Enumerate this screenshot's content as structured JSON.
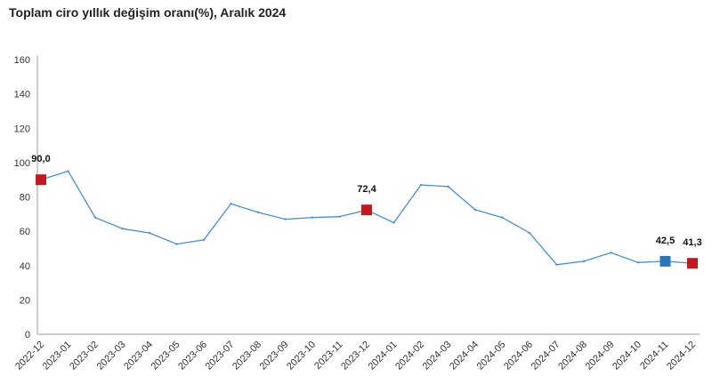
{
  "chart_data": {
    "type": "line",
    "title": "Toplam ciro yıllık değişim oranı(%), Aralık 2024",
    "xlabel": "",
    "ylabel": "",
    "ylim": [
      0,
      160
    ],
    "yticks": [
      0,
      20,
      40,
      60,
      80,
      100,
      120,
      140,
      160
    ],
    "categories": [
      "2022-12",
      "2023-01",
      "2023-02",
      "2023-03",
      "2023-04",
      "2023-05",
      "2023-06",
      "2023-07",
      "2023-08",
      "2023-09",
      "2023-10",
      "2023-11",
      "2023-12",
      "2024-01",
      "2024-02",
      "2024-03",
      "2024-04",
      "2024-05",
      "2024-06",
      "2024-07",
      "2024-08",
      "2024-09",
      "2024-10",
      "2024-11",
      "2024-12"
    ],
    "series": [
      {
        "name": "Toplam ciro yıllık değişim oranı",
        "values": [
          90.0,
          95.0,
          68.0,
          61.5,
          59.0,
          52.5,
          55.0,
          76.0,
          71.0,
          67.0,
          68.0,
          68.5,
          72.4,
          65.0,
          87.0,
          86.0,
          72.5,
          68.0,
          59.0,
          40.5,
          42.5,
          47.5,
          41.8,
          42.5,
          41.3
        ]
      }
    ],
    "highlights": [
      {
        "index": 0,
        "label": "90,0",
        "color": "#c0191f"
      },
      {
        "index": 12,
        "label": "72,4",
        "color": "#c0191f"
      },
      {
        "index": 23,
        "label": "42,5",
        "color": "#2e75b6"
      },
      {
        "index": 24,
        "label": "41,3",
        "color": "#c0191f"
      }
    ],
    "line_color": "#4a90c8",
    "axis_color": "#999999"
  }
}
